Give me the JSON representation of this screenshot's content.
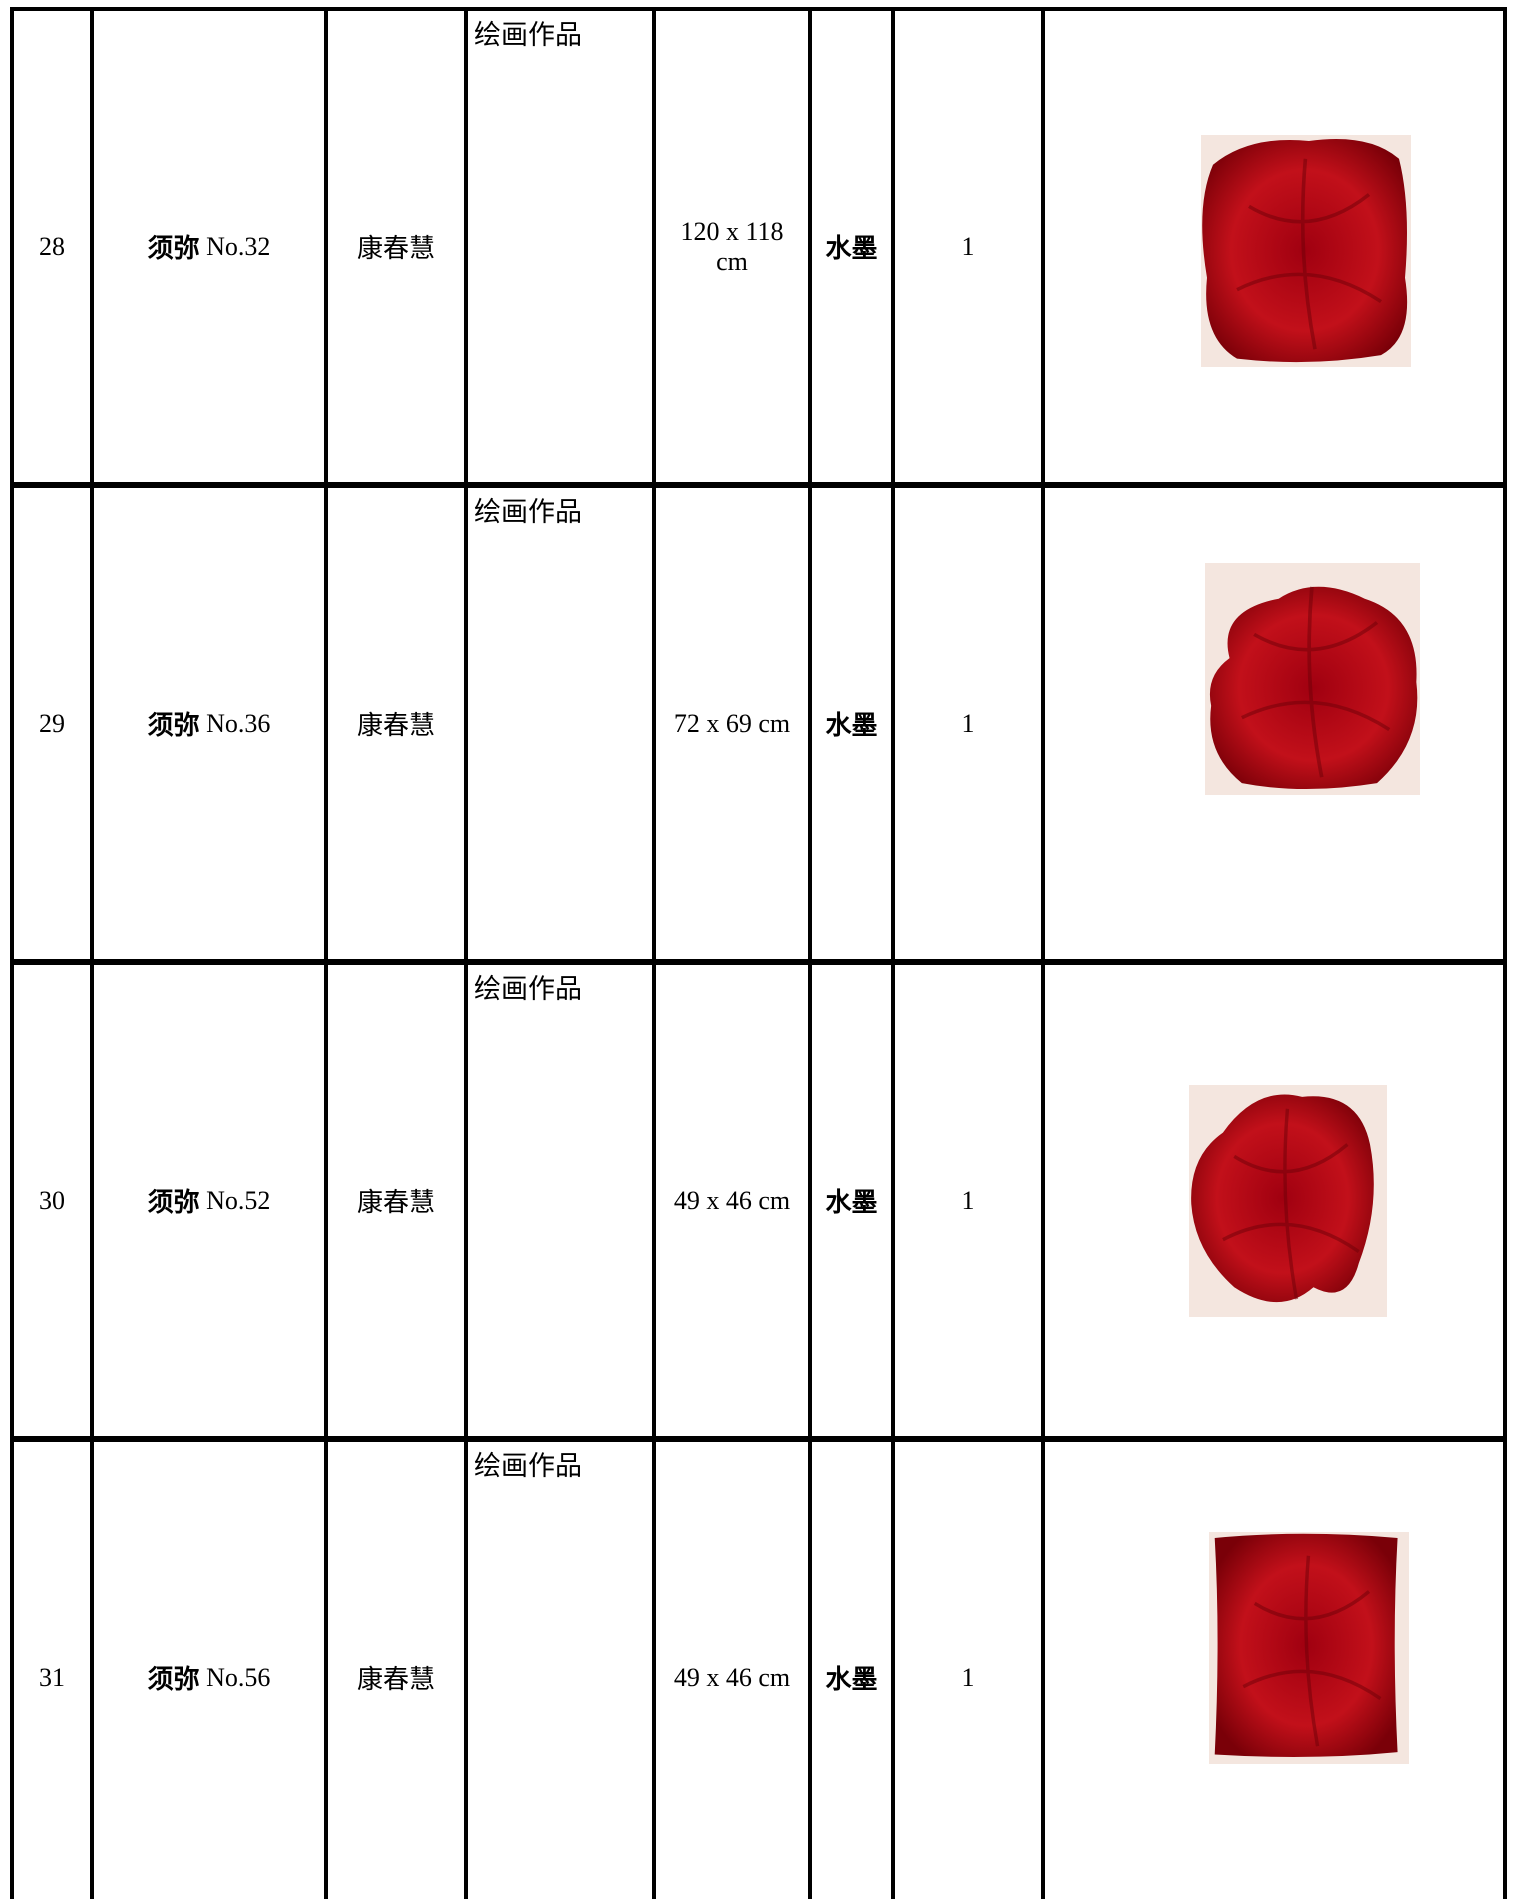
{
  "table": {
    "rows": [
      [
        "28",
        "须弥",
        "No.32",
        "康春慧",
        "绘画作品",
        "120 x 118 cm",
        "水墨",
        "1"
      ],
      [
        "29",
        "须弥",
        "No.36",
        "康春慧",
        "绘画作品",
        "72 x 69 cm",
        "水墨",
        "1"
      ],
      [
        "30",
        "须弥",
        "No.52",
        "康春慧",
        "绘画作品",
        "49 x 46 cm",
        "水墨",
        "1"
      ],
      [
        "31",
        "须弥",
        "No.56",
        "康春慧",
        "绘画作品",
        "49 x 46 cm",
        "水墨",
        "1"
      ]
    ]
  }
}
